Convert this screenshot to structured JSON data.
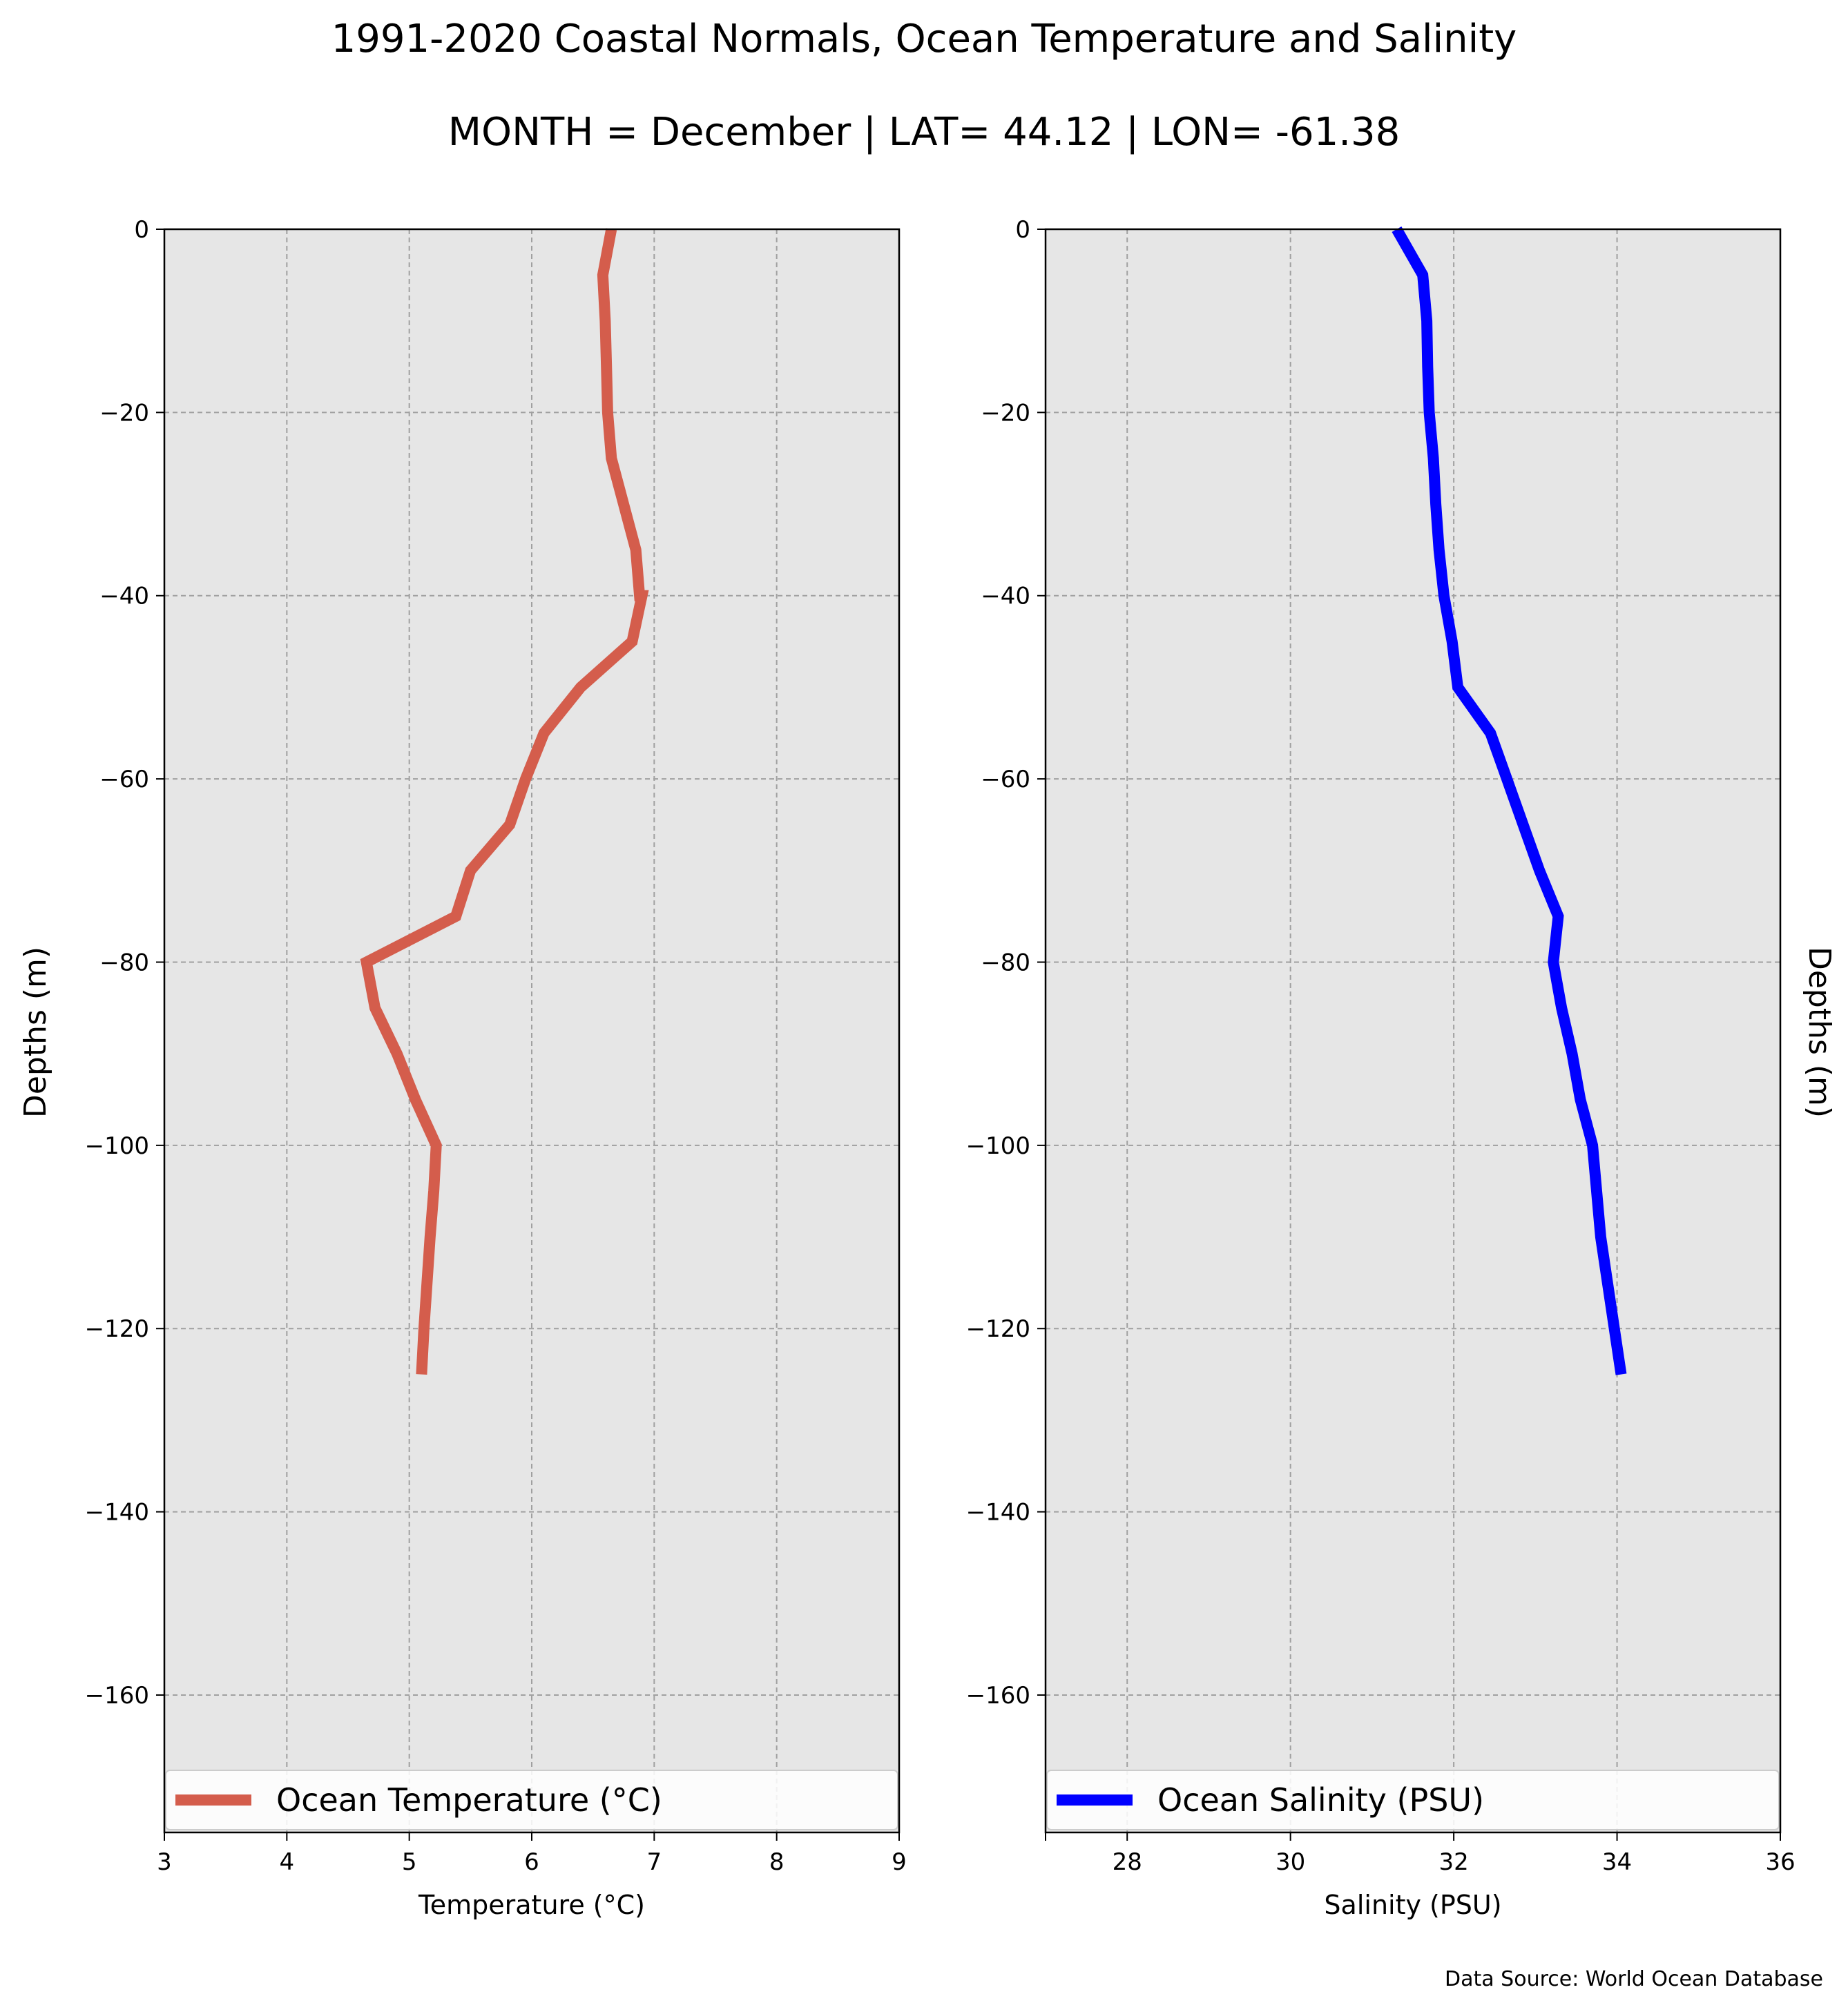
{
  "title": "1991-2020 Coastal Normals, Ocean Temperature and Salinity",
  "subtitle": "MONTH = December | LAT= 44.12 | LON= -61.38",
  "source": "Data Source: World Ocean Database",
  "colors": {
    "background": "#ffffff",
    "panel": "#e6e6e6",
    "grid": "#a0a0a0",
    "temperature": "#d45d4c",
    "salinity": "#0000ff"
  },
  "chart_data": [
    {
      "type": "line",
      "panel": "left",
      "xlabel": "Temperature (°C)",
      "ylabel": "Depths (m)",
      "xlim": [
        3,
        9
      ],
      "ylim": [
        -175,
        0
      ],
      "xticks": [
        "3",
        "4",
        "5",
        "6",
        "7",
        "8",
        "9"
      ],
      "yticks": [
        "0",
        "−20",
        "−40",
        "−60",
        "−80",
        "−100",
        "−120",
        "−140",
        "−160"
      ],
      "grid": true,
      "legend_position": "bottom",
      "series": [
        {
          "name": "Ocean Temperature (°C)",
          "color": "#d45d4c",
          "x": [
            6.65,
            6.58,
            6.6,
            6.61,
            6.62,
            6.65,
            6.75,
            6.85,
            6.88,
            6.9,
            6.82,
            6.4,
            6.1,
            5.95,
            5.82,
            5.5,
            5.38,
            4.65,
            4.72,
            4.9,
            5.05,
            5.22,
            5.2,
            5.17,
            5.12,
            5.1
          ],
          "y": [
            0,
            -5,
            -10,
            -15,
            -20,
            -25,
            -30,
            -35,
            -40,
            -40,
            -45,
            -50,
            -55,
            -60,
            -65,
            -70,
            -75,
            -80,
            -85,
            -90,
            -95,
            -100,
            -105,
            -110,
            -120,
            -125
          ]
        }
      ]
    },
    {
      "type": "line",
      "panel": "right",
      "xlabel": "Salinity (PSU)",
      "ylabel": "Depths (m)",
      "xlim": [
        27,
        36
      ],
      "ylim": [
        -175,
        0
      ],
      "xticks": [
        "28",
        "30",
        "32",
        "34",
        "36"
      ],
      "yticks": [
        "0",
        "−20",
        "−40",
        "−60",
        "−80",
        "−100",
        "−120",
        "−140",
        "−160"
      ],
      "grid": true,
      "legend_position": "bottom",
      "series": [
        {
          "name": "Ocean Salinity (PSU)",
          "color": "#0000ff",
          "x": [
            31.3,
            31.62,
            31.67,
            31.68,
            31.7,
            31.75,
            31.78,
            31.82,
            31.88,
            31.98,
            32.05,
            32.45,
            32.65,
            32.85,
            33.05,
            33.28,
            33.22,
            33.32,
            33.45,
            33.55,
            33.7,
            33.8,
            34.05
          ],
          "y": [
            0,
            -5,
            -10,
            -15,
            -20,
            -25,
            -30,
            -35,
            -40,
            -45,
            -50,
            -55,
            -60,
            -65,
            -70,
            -75,
            -80,
            -85,
            -90,
            -95,
            -100,
            -110,
            -125
          ]
        }
      ]
    }
  ]
}
